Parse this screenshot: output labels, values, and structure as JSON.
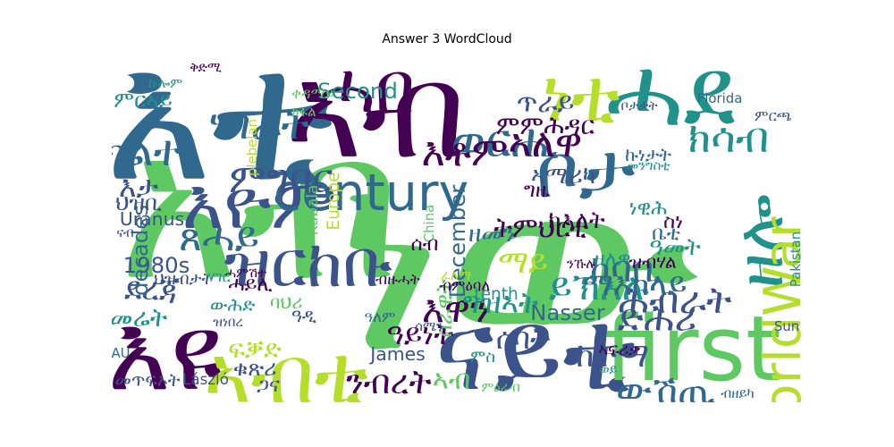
{
  "chart_data": {
    "type": "wordcloud",
    "title": "Answer 3 WordCloud",
    "words": [
      {
        "text": "ነው",
        "weight": 1.0,
        "color": "#5ec962"
      },
      {
        "text": "አብ",
        "weight": 0.8,
        "color": "#5ec962"
      },
      {
        "text": "እቲ",
        "weight": 0.72,
        "color": "#31688e"
      },
      {
        "text": "ኣብ",
        "weight": 0.55,
        "color": "#440154"
      },
      {
        "text": "ሓደ",
        "weight": 0.42,
        "color": "#21918c"
      },
      {
        "text": "ናይቲ",
        "weight": 0.48,
        "color": "#3b528b"
      },
      {
        "text": "እዩ",
        "weight": 0.46,
        "color": "#440154"
      },
      {
        "text": "first",
        "weight": 0.4,
        "color": "#5ec962"
      },
      {
        "text": "ኣብቲ",
        "weight": 0.36,
        "color": "#b5de2b"
      },
      {
        "text": "ቦታ",
        "weight": 0.34,
        "color": "#31688e"
      },
      {
        "text": "ነቲ",
        "weight": 0.33,
        "color": "#b5de2b"
      },
      {
        "text": "ሓበ",
        "weight": 0.32,
        "color": "#440154"
      },
      {
        "text": "እዮም",
        "weight": 0.32,
        "color": "#3b528b"
      },
      {
        "text": "ዝርከቡ",
        "weight": 0.3,
        "color": "#3b528b"
      },
      {
        "text": "ዘሎ",
        "weight": 0.3,
        "color": "#21918c"
      },
      {
        "text": "century",
        "weight": 0.24,
        "color": "#31688e"
      },
      {
        "text": "WorldWar",
        "weight": 0.24,
        "color": "#b5de2b"
      },
      {
        "text": "ወርሒ",
        "weight": 0.22,
        "color": "#31688e"
      },
      {
        "text": "ክሳብ",
        "weight": 0.2,
        "color": "#21918c"
      },
      {
        "text": "ሃገራት",
        "weight": 0.2,
        "color": "#31688e"
      },
      {
        "text": "ክልተ",
        "weight": 0.2,
        "color": "#31688e"
      },
      {
        "text": "ኣለዋ",
        "weight": 0.19,
        "color": "#440154"
      },
      {
        "text": "እቶም",
        "weight": 0.19,
        "color": "#440154"
      },
      {
        "text": "ምግባር",
        "weight": 0.19,
        "color": "#3b528b"
      },
      {
        "text": "ጸሓይ",
        "weight": 0.19,
        "color": "#31688e"
      },
      {
        "text": "ከባቢ",
        "weight": 0.18,
        "color": "#31688e"
      },
      {
        "text": "ይኽእሉ",
        "weight": 0.18,
        "color": "#21918c"
      },
      {
        "text": "ድሕሪ",
        "weight": 0.18,
        "color": "#3b528b"
      },
      {
        "text": "ሕብራት",
        "weight": 0.18,
        "color": "#3b528b"
      },
      {
        "text": "እዋን",
        "weight": 0.18,
        "color": "#440154"
      },
      {
        "text": "ውሽጢ",
        "weight": 0.18,
        "color": "#31688e"
      },
      {
        "text": "ኣብቲ",
        "weight": 0.3,
        "color": "#b5de2b"
      },
      {
        "text": "ንብረት",
        "weight": 0.16,
        "color": "#440154"
      },
      {
        "text": "ከተማ",
        "weight": 0.16,
        "color": "#3b528b"
      },
      {
        "text": "ደረጃ",
        "weight": 0.15,
        "color": "#3b528b"
      },
      {
        "text": "ማይ",
        "weight": 0.15,
        "color": "#b5de2b"
      },
      {
        "text": "ማእከላይ",
        "weight": 0.15,
        "color": "#31688e"
      },
      {
        "text": "ግዝኣት",
        "weight": 0.14,
        "color": "#21918c"
      },
      {
        "text": "ሰባት",
        "weight": 0.14,
        "color": "#3b528b"
      },
      {
        "text": "ዓይነት",
        "weight": 0.14,
        "color": "#440154"
      },
      {
        "text": "ትምህርቲ",
        "weight": 0.13,
        "color": "#440154"
      },
      {
        "text": "ጥራይ",
        "weight": 0.13,
        "color": "#3b528b"
      },
      {
        "text": "ምምሕዳር",
        "weight": 0.12,
        "color": "#440154"
      },
      {
        "text": "ኣሜሪካ",
        "weight": 0.11,
        "color": "#3b528b"
      },
      {
        "text": "ክእለት",
        "weight": 0.11,
        "color": "#440154"
      },
      {
        "text": "ዓመት",
        "weight": 0.11,
        "color": "#21918c"
      },
      {
        "text": "እታ",
        "weight": 0.14,
        "color": "#3b528b"
      },
      {
        "text": "ኣብ",
        "weight": 0.13,
        "color": "#5ec962"
      },
      {
        "text": "ፍቓድ",
        "weight": 0.12,
        "color": "#b5de2b"
      },
      {
        "text": "መሬት",
        "weight": 0.12,
        "color": "#21918c"
      },
      {
        "text": "ዘመን",
        "weight": 0.11,
        "color": "#31688e"
      },
      {
        "text": "ቁጽሪ",
        "weight": 0.1,
        "color": "#3b528b"
      },
      {
        "text": "ሰራዊት",
        "weight": 0.1,
        "color": "#5ec962"
      },
      {
        "text": "Second",
        "weight": 0.1,
        "color": "#21918c"
      },
      {
        "text": "December",
        "weight": 0.1,
        "color": "#31688e"
      },
      {
        "text": "1980s",
        "weight": 0.1,
        "color": "#3b528b"
      },
      {
        "text": "Nasser",
        "weight": 0.1,
        "color": "#31688e"
      },
      {
        "text": "decades",
        "weight": 0.1,
        "color": "#31688e"
      },
      {
        "text": "James",
        "weight": 0.08,
        "color": "#3b528b"
      },
      {
        "text": "Uranus",
        "weight": 0.08,
        "color": "#3b528b"
      },
      {
        "text": "Europe",
        "weight": 0.07,
        "color": "#b5de2b"
      },
      {
        "text": "tenth",
        "weight": 0.07,
        "color": "#21918c"
      },
      {
        "text": "László",
        "weight": 0.06,
        "color": "#3b528b"
      },
      {
        "text": "Kubala",
        "weight": 0.06,
        "color": "#5ec962"
      },
      {
        "text": "China",
        "weight": 0.05,
        "color": "#5ec962"
      },
      {
        "text": "Florida",
        "weight": 0.05,
        "color": "#31688e"
      },
      {
        "text": "Pakistan",
        "weight": 0.05,
        "color": "#21918c"
      },
      {
        "text": "plebelan",
        "weight": 0.05,
        "color": "#b5de2b"
      },
      {
        "text": "AU",
        "weight": 0.05,
        "color": "#31688e"
      },
      {
        "text": "Sun",
        "weight": 0.05,
        "color": "#3b528b"
      },
      {
        "text": "ህዝቢ",
        "weight": 0.1,
        "color": "#3b528b"
      },
      {
        "text": "ምርኣይ",
        "weight": 0.1,
        "color": "#21918c"
      },
      {
        "text": "ሓይሊ",
        "weight": 0.09,
        "color": "#440154"
      },
      {
        "text": "ነዊሕ",
        "weight": 0.09,
        "color": "#21918c"
      },
      {
        "text": "ጋና",
        "weight": 0.09,
        "color": "#3b528b"
      },
      {
        "text": "ሰብ",
        "weight": 0.09,
        "color": "#440154"
      },
      {
        "text": "ዘለዎ",
        "weight": 0.09,
        "color": "#21918c"
      },
      {
        "text": "ኩነታት",
        "weight": 0.08,
        "color": "#31688e"
      },
      {
        "text": "ውሕድ",
        "weight": 0.08,
        "color": "#21918c"
      },
      {
        "text": "ባህሪ",
        "weight": 0.08,
        "color": "#5ec962"
      },
      {
        "text": "ዝብሃል",
        "weight": 0.08,
        "color": "#440154"
      },
      {
        "text": "ዓዲ",
        "weight": 0.08,
        "color": "#3b528b"
      },
      {
        "text": "ግዜ",
        "weight": 0.09,
        "color": "#440154"
      },
      {
        "text": "ቤቲ",
        "weight": 0.09,
        "color": "#31688e"
      },
      {
        "text": "ስነ",
        "weight": 0.09,
        "color": "#440154"
      },
      {
        "text": "መጥፍኦት",
        "weight": 0.08,
        "color": "#3b528b"
      },
      {
        "text": "ህዝብታት",
        "weight": 0.07,
        "color": "#3b528b"
      },
      {
        "text": "ምስ",
        "weight": 0.07,
        "color": "#21918c"
      },
      {
        "text": "ኣፍሪቃ",
        "weight": 0.07,
        "color": "#440154"
      },
      {
        "text": "ብምዕባለ",
        "weight": 0.06,
        "color": "#440154"
      },
      {
        "text": "ምርጫ",
        "weight": 0.06,
        "color": "#3b528b"
      },
      {
        "text": "ቀዳማይ",
        "weight": 0.06,
        "color": "#5ec962"
      },
      {
        "text": "ብዙሓት",
        "weight": 0.06,
        "color": "#440154"
      },
      {
        "text": "ሃገር",
        "weight": 0.06,
        "color": "#21918c"
      },
      {
        "text": "ዓለም",
        "weight": 0.06,
        "color": "#31688e"
      },
      {
        "text": "ቦታታት",
        "weight": 0.05,
        "color": "#3b528b"
      },
      {
        "text": "ክፋል",
        "weight": 0.05,
        "color": "#5ec962"
      },
      {
        "text": "መንግስቲ",
        "weight": 0.05,
        "color": "#21918c"
      },
      {
        "text": "ሓምሽተ",
        "weight": 0.05,
        "color": "#440154"
      },
      {
        "text": "ሰሜን",
        "weight": 0.05,
        "color": "#3b528b"
      },
      {
        "text": "ኩሎም",
        "weight": 0.05,
        "color": "#21918c"
      },
      {
        "text": "ዝነበረ",
        "weight": 0.05,
        "color": "#3b528b"
      },
      {
        "text": "ንኹሉ",
        "weight": 0.05,
        "color": "#440154"
      },
      {
        "text": "ብዘይካ",
        "weight": 0.05,
        "color": "#31688e"
      },
      {
        "text": "ምዕራብ",
        "weight": 0.05,
        "color": "#5ec962"
      },
      {
        "text": "ፈለማ",
        "weight": 0.05,
        "color": "#b5de2b"
      },
      {
        "text": "ቅድሚ",
        "weight": 0.05,
        "color": "#440154"
      },
      {
        "text": "ናብ",
        "weight": 0.05,
        "color": "#3b528b"
      },
      {
        "text": "ወይ",
        "weight": 0.05,
        "color": "#21918c"
      }
    ]
  }
}
